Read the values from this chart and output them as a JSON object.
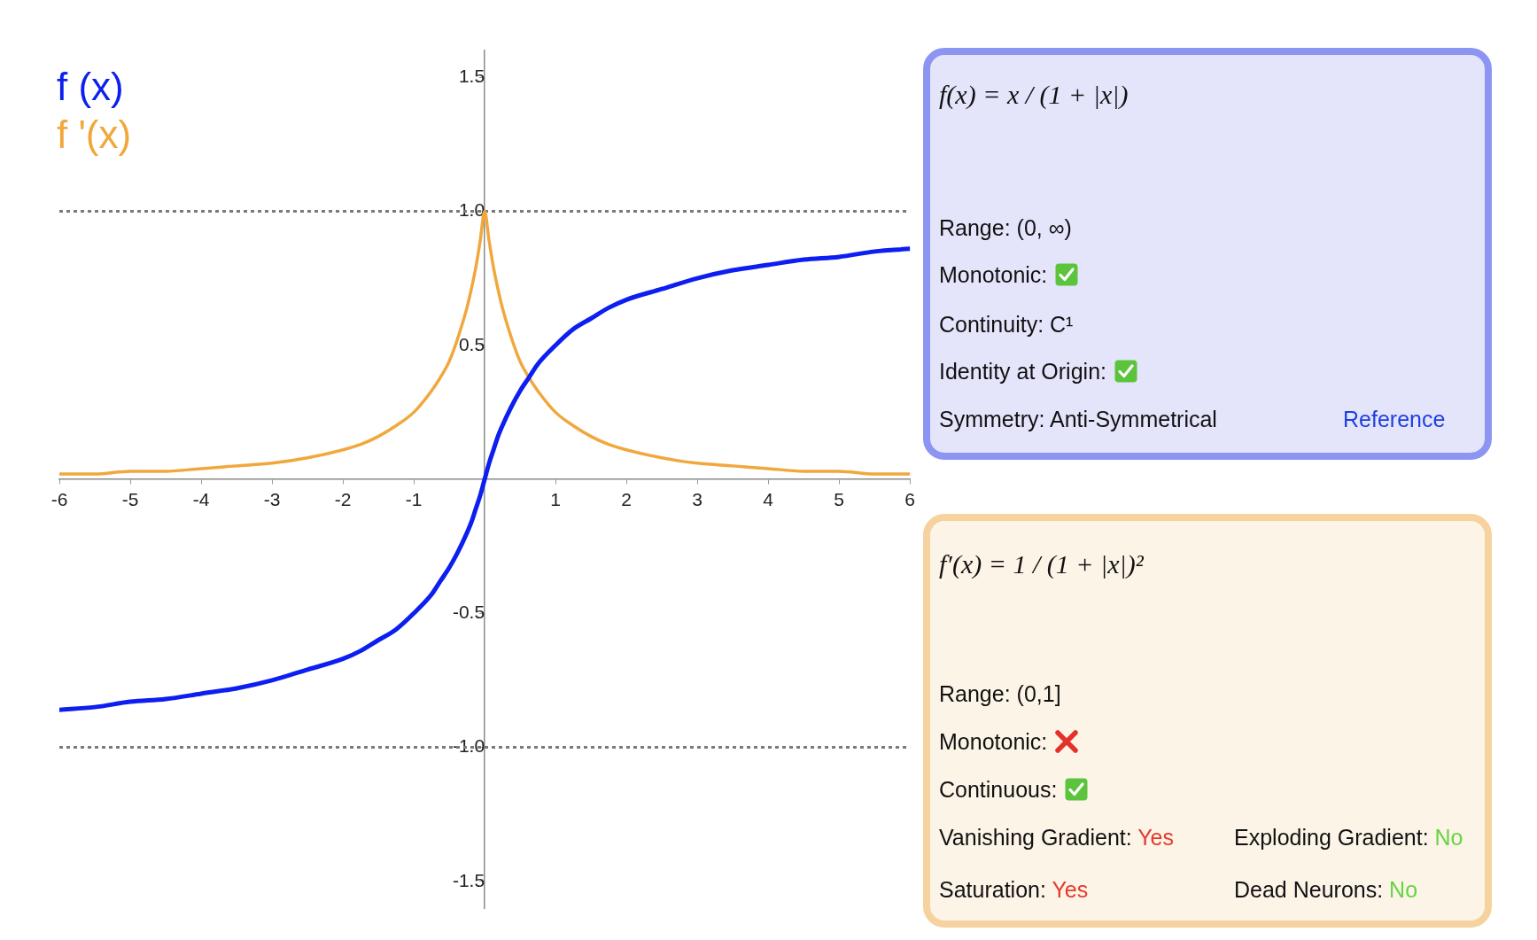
{
  "chart_data": [
    {
      "type": "line",
      "x": [
        -6,
        -5.5,
        -5,
        -4.5,
        -4,
        -3.5,
        -3,
        -2.5,
        -2,
        -1.75,
        -1.5,
        -1.25,
        -1,
        -0.75,
        -0.625,
        -0.5,
        -0.375,
        -0.25,
        -0.1875,
        -0.125,
        -0.0625,
        0,
        0.0625,
        0.125,
        0.1875,
        0.25,
        0.375,
        0.5,
        0.625,
        0.75,
        1,
        1.25,
        1.5,
        1.75,
        2,
        2.5,
        3,
        3.5,
        4,
        4.5,
        5,
        5.5,
        6
      ],
      "series": [
        {
          "name": "f (x)",
          "color": "#0d1ef0",
          "values": [
            -0.86,
            -0.85,
            -0.83,
            -0.82,
            -0.8,
            -0.78,
            -0.75,
            -0.71,
            -0.67,
            -0.64,
            -0.6,
            -0.56,
            -0.5,
            -0.43,
            -0.38,
            -0.33,
            -0.27,
            -0.2,
            -0.16,
            -0.11,
            -0.06,
            0,
            0.06,
            0.11,
            0.16,
            0.2,
            0.27,
            0.33,
            0.38,
            0.43,
            0.5,
            0.56,
            0.6,
            0.64,
            0.67,
            0.71,
            0.75,
            0.78,
            0.8,
            0.82,
            0.83,
            0.85,
            0.86
          ]
        },
        {
          "name": "f '(x)",
          "color": "#f0a83c",
          "values": [
            0.02,
            0.02,
            0.03,
            0.03,
            0.04,
            0.05,
            0.06,
            0.08,
            0.11,
            0.13,
            0.16,
            0.2,
            0.25,
            0.33,
            0.38,
            0.44,
            0.53,
            0.64,
            0.71,
            0.79,
            0.89,
            1,
            0.89,
            0.79,
            0.71,
            0.64,
            0.53,
            0.44,
            0.38,
            0.33,
            0.25,
            0.2,
            0.16,
            0.13,
            0.11,
            0.08,
            0.06,
            0.05,
            0.04,
            0.03,
            0.03,
            0.02,
            0.02
          ]
        }
      ],
      "xlim": [
        -6,
        6
      ],
      "ylim": [
        -1.6,
        1.6
      ],
      "xticks": [
        -6,
        -5,
        -4,
        -3,
        -2,
        -1,
        1,
        2,
        3,
        4,
        5,
        6
      ],
      "yticks": [
        -1.5,
        {
          "value": -1,
          "label": "-1.0"
        },
        -0.5,
        0.5,
        {
          "value": 1,
          "label": "1.0"
        },
        1.5
      ],
      "ref_lines": [
        {
          "axis": "y",
          "value": 1,
          "color": "#7a7a7a",
          "line_style": "dotted"
        },
        {
          "axis": "y",
          "value": -1,
          "color": "#7a7a7a",
          "line_style": "dotted"
        }
      ],
      "legend": "top left"
    },
    {
      "type": "other",
      "title": "f(x) = x / (1 + |x|)",
      "annotations": [
        "Range: (0, ∞)",
        "Monotonic:",
        "Continuity: C¹",
        "Identity at Origin:",
        "Symmetry: Anti-Symmetrical",
        "Reference"
      ]
    },
    {
      "type": "other",
      "title": "f′(x) = 1 / (1 + |x|)²",
      "annotations": [
        "Range: (0,1]",
        "Monotonic:",
        "Continuous:",
        "Vanishing Gradient: Yes",
        "Exploding Gradient: No",
        "Saturation: Yes",
        "Dead Neurons: No"
      ]
    }
  ]
}
